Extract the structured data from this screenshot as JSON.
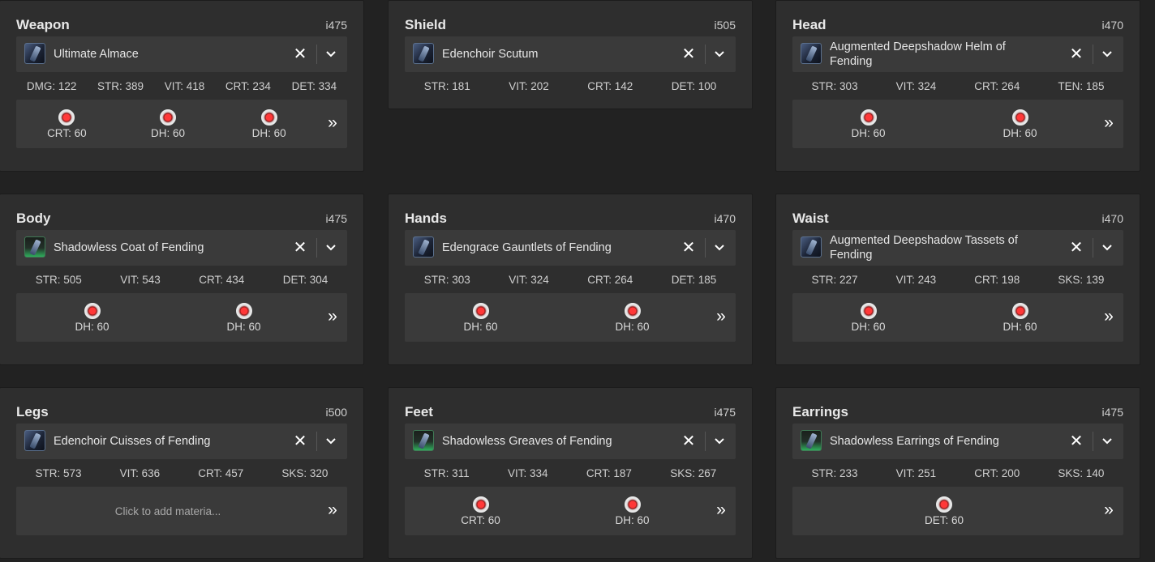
{
  "slots": {
    "weapon": {
      "slot": "Weapon",
      "ilvl": "i475",
      "item": "Ultimate Almace",
      "stats": [
        "DMG: 122",
        "STR: 389",
        "VIT: 418",
        "CRT: 234",
        "DET: 334"
      ],
      "materia": [
        "CRT: 60",
        "DH: 60",
        "DH: 60"
      ]
    },
    "shield": {
      "slot": "Shield",
      "ilvl": "i505",
      "item": "Edenchoir Scutum",
      "stats": [
        "STR: 181",
        "VIT: 202",
        "CRT: 142",
        "DET: 100"
      ]
    },
    "head": {
      "slot": "Head",
      "ilvl": "i470",
      "item": "Augmented Deepshadow Helm of Fending",
      "stats": [
        "STR: 303",
        "VIT: 324",
        "CRT: 264",
        "TEN: 185"
      ],
      "materia": [
        "DH: 60",
        "DH: 60"
      ]
    },
    "body": {
      "slot": "Body",
      "ilvl": "i475",
      "item": "Shadowless Coat of Fending",
      "stats": [
        "STR: 505",
        "VIT: 543",
        "CRT: 434",
        "DET: 304"
      ],
      "materia": [
        "DH: 60",
        "DH: 60"
      ]
    },
    "hands": {
      "slot": "Hands",
      "ilvl": "i470",
      "item": "Edengrace Gauntlets of Fending",
      "stats": [
        "STR: 303",
        "VIT: 324",
        "CRT: 264",
        "DET: 185"
      ],
      "materia": [
        "DH: 60",
        "DH: 60"
      ]
    },
    "waist": {
      "slot": "Waist",
      "ilvl": "i470",
      "item": "Augmented Deepshadow Tassets of Fending",
      "stats": [
        "STR: 227",
        "VIT: 243",
        "CRT: 198",
        "SKS: 139"
      ],
      "materia": [
        "DH: 60",
        "DH: 60"
      ]
    },
    "legs": {
      "slot": "Legs",
      "ilvl": "i500",
      "item": "Edenchoir Cuisses of Fending",
      "stats": [
        "STR: 573",
        "VIT: 636",
        "CRT: 457",
        "SKS: 320"
      ],
      "materia_placeholder": "Click to add materia..."
    },
    "feet": {
      "slot": "Feet",
      "ilvl": "i475",
      "item": "Shadowless Greaves of Fending",
      "stats": [
        "STR: 311",
        "VIT: 334",
        "CRT: 187",
        "SKS: 267"
      ],
      "materia": [
        "CRT: 60",
        "DH: 60"
      ]
    },
    "earrings": {
      "slot": "Earrings",
      "ilvl": "i475",
      "item": "Shadowless Earrings of Fending",
      "stats": [
        "STR: 233",
        "VIT: 251",
        "CRT: 200",
        "SKS: 140"
      ],
      "materia": [
        "DET: 60"
      ]
    }
  },
  "icons": {
    "clear": "✕",
    "dropdown": "chevron-down-icon",
    "expand": "double-chevron-right-icon",
    "materia": "materia-gem-icon"
  },
  "colors": {
    "background": "#222222",
    "card": "#2e2e2e",
    "control": "#3a3a3a",
    "materia_core": "#ff3838"
  }
}
